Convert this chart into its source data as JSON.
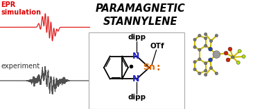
{
  "title_line1": "PARAMAGNETIC",
  "title_line2": "STANNYLENE",
  "title_color": "#000000",
  "title_fontsize": 10.5,
  "epr_label": "EPR\nsimulation",
  "epr_color": "#dd0000",
  "exp_label": "experiment",
  "exp_color": "#303030",
  "bg_color": "#ffffff",
  "panel_border": "#aaaaaa",
  "dipp_color": "#000000",
  "N_color": "#2222cc",
  "Sn_color": "#dd6600",
  "OTf_color": "#000000",
  "bond_color": "#ccbb00",
  "carbon_color": "#777777",
  "N_atom_color": "#2244aa",
  "O_atom_color": "#cc2200",
  "F_atom_color": "#aadd00",
  "Sn_atom_color": "#999999"
}
